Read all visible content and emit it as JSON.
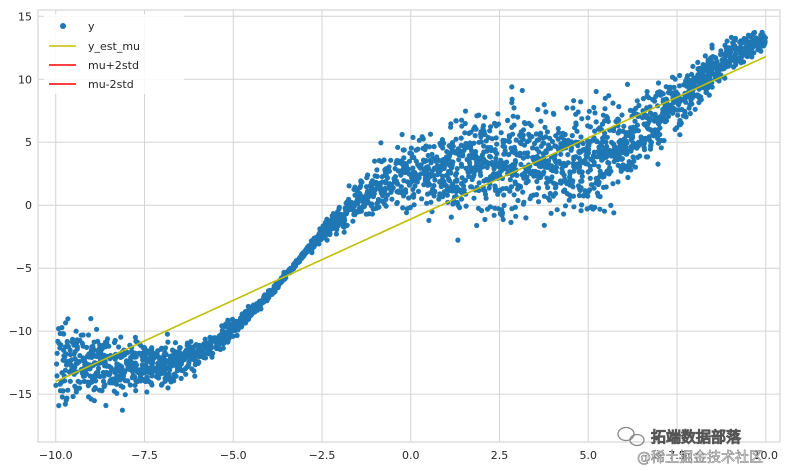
{
  "chart_data": {
    "type": "scatter",
    "title": "",
    "xlabel": "",
    "ylabel": "",
    "xlim": [
      -10.5,
      10.4
    ],
    "ylim": [
      -18.8,
      15.5
    ],
    "xticks": [
      -10.0,
      -7.5,
      -5.0,
      -2.5,
      0.0,
      2.5,
      5.0,
      7.5,
      10.0
    ],
    "xtick_labels": [
      "−10.0",
      "−7.5",
      "−5.0",
      "−2.5",
      "0.0",
      "2.5",
      "5.0",
      "7.5",
      "10.0"
    ],
    "yticks": [
      15,
      10,
      5,
      0,
      -5,
      -10,
      -15
    ],
    "ytick_labels": [
      "15",
      "10",
      "5",
      "0",
      "−5",
      "−10",
      "−15"
    ],
    "grid": true,
    "legend_position": "upper-left",
    "series": [
      {
        "name": "y",
        "kind": "scatter",
        "color": "#1f77b4",
        "description_of_cloud": "noisy sinusoidal-trend scatter, x from -10 to 10",
        "centerline": {
          "x": [
            -10,
            -9,
            -8,
            -7,
            -6,
            -5,
            -4,
            -3.5,
            -3,
            -2,
            -1,
            0,
            1,
            2,
            3,
            4,
            5,
            6,
            7,
            8,
            9,
            10
          ],
          "y": [
            -12.5,
            -12.5,
            -12.8,
            -12.7,
            -11.8,
            -9.8,
            -7.2,
            -5.5,
            -3.8,
            -0.8,
            1.2,
            2.3,
            3.0,
            3.3,
            3.3,
            3.2,
            3.6,
            4.6,
            6.8,
            9.3,
            11.8,
            13.3
          ]
        },
        "spread": {
          "x": [
            -10,
            -9,
            -8,
            -7,
            -6,
            -5,
            -4,
            -3,
            -2,
            -1,
            0,
            1,
            2,
            3,
            4,
            5,
            6,
            7,
            8,
            9,
            10
          ],
          "y": [
            1.6,
            1.3,
            1.0,
            0.8,
            0.5,
            0.3,
            0.15,
            0.12,
            0.5,
            0.9,
            1.3,
            1.6,
            1.9,
            2.0,
            2.0,
            1.9,
            1.6,
            1.2,
            0.9,
            0.6,
            0.35
          ]
        }
      },
      {
        "name": "y_est_mu",
        "kind": "line",
        "color": "#bfbf00",
        "x": [
          -10.0,
          10.0
        ],
        "y": [
          -14.0,
          11.8
        ]
      },
      {
        "name": "mu+2std",
        "kind": "line",
        "color": "#ff0000",
        "x": [],
        "y": []
      },
      {
        "name": "mu-2std",
        "kind": "line",
        "color": "#ff0000",
        "x": [],
        "y": []
      }
    ]
  },
  "watermark": {
    "line1": "拓端数据部落",
    "line2": "@稀土掘金技术社区"
  }
}
